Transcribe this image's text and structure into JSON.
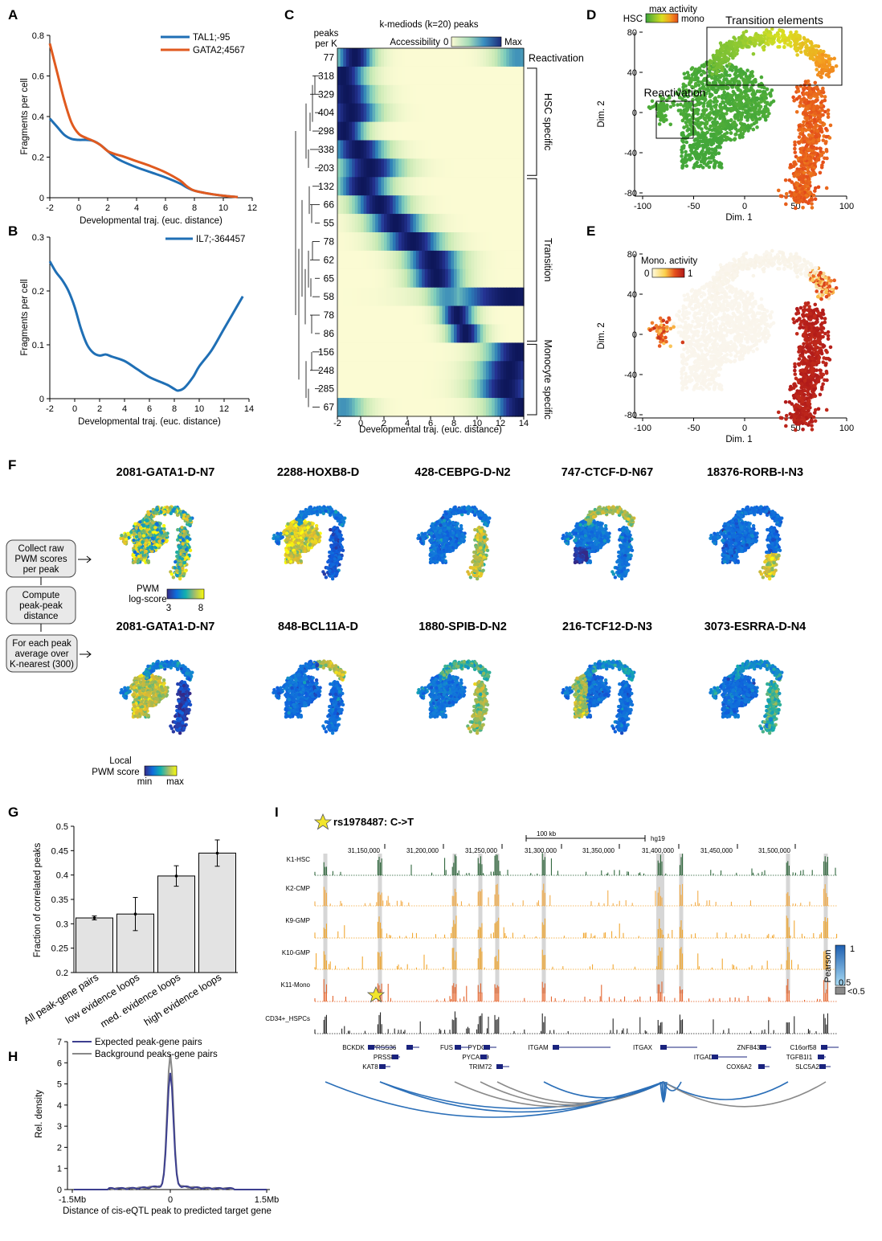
{
  "panels": {
    "A": {
      "letter": "A",
      "chart_data": {
        "type": "line",
        "xlabel": "Developmental traj. (euc. distance)",
        "ylabel": "Fragments per cell",
        "xlim": [
          -2,
          12
        ],
        "ylim": [
          0,
          0.8
        ],
        "xticks": [
          -2,
          0,
          2,
          4,
          6,
          8,
          10,
          12
        ],
        "yticks": [
          0,
          0.2,
          0.4,
          0.6,
          0.8
        ],
        "legend": "top-right",
        "series": [
          {
            "name": "TAL1;-95",
            "color": "#1f6fb5",
            "x": [
              -2,
              -1.5,
              -1,
              -0.5,
              0,
              0.5,
              1,
              1.5,
              2,
              2.5,
              3,
              4,
              5,
              6,
              7,
              7.5,
              8,
              9,
              10,
              11
            ],
            "y": [
              0.39,
              0.35,
              0.31,
              0.29,
              0.285,
              0.285,
              0.28,
              0.26,
              0.23,
              0.2,
              0.18,
              0.15,
              0.125,
              0.1,
              0.07,
              0.05,
              0.035,
              0.02,
              0.01,
              0.003
            ]
          },
          {
            "name": "GATA2;4567",
            "color": "#e05a1f",
            "x": [
              -2,
              -1.5,
              -1,
              -0.5,
              0,
              0.5,
              1,
              1.5,
              2,
              2.5,
              3,
              4,
              5,
              6,
              7,
              7.5,
              8,
              9,
              10,
              11
            ],
            "y": [
              0.76,
              0.62,
              0.48,
              0.37,
              0.315,
              0.295,
              0.28,
              0.26,
              0.23,
              0.215,
              0.205,
              0.18,
              0.155,
              0.125,
              0.085,
              0.055,
              0.035,
              0.02,
              0.01,
              0.003
            ]
          }
        ]
      }
    },
    "B": {
      "letter": "B",
      "chart_data": {
        "type": "line",
        "xlabel": "Developmental traj. (euc. distance)",
        "ylabel": "Fragments per cell",
        "xlim": [
          -2,
          14
        ],
        "ylim": [
          0,
          0.3
        ],
        "xticks": [
          -2,
          0,
          2,
          4,
          6,
          8,
          10,
          12,
          14
        ],
        "yticks": [
          0,
          0.1,
          0.2,
          0.3
        ],
        "legend": "top-right",
        "series": [
          {
            "name": "IL7;-364457",
            "color": "#1f6fb5",
            "x": [
              -2,
              -1.5,
              -1,
              -0.5,
              0,
              0.5,
              1,
              1.5,
              2,
              2.5,
              3,
              4,
              5,
              6,
              7,
              7.5,
              8,
              8.3,
              8.8,
              9.5,
              10,
              11,
              12,
              13.5
            ],
            "y": [
              0.255,
              0.235,
              0.22,
              0.2,
              0.17,
              0.13,
              0.1,
              0.085,
              0.08,
              0.082,
              0.078,
              0.07,
              0.055,
              0.04,
              0.03,
              0.025,
              0.018,
              0.015,
              0.02,
              0.04,
              0.06,
              0.09,
              0.13,
              0.19
            ]
          }
        ]
      }
    },
    "C": {
      "letter": "C",
      "title": "k-mediods (k=20) peaks",
      "peaks_header": [
        "peaks",
        "per K"
      ],
      "scale_label": "Accessibility",
      "scale_min": "0",
      "scale_max": "Max",
      "xlabel": "Developmental traj. (euc. distance)",
      "xticks": [
        -2,
        0,
        2,
        4,
        6,
        8,
        10,
        12,
        14
      ],
      "groups": [
        {
          "label": "Reactivation",
          "rows": [
            0,
            0
          ]
        },
        {
          "label": "HSC specific",
          "rows": [
            1,
            6
          ]
        },
        {
          "label": "Transition",
          "rows": [
            7,
            15
          ]
        },
        {
          "label": "Monocyte specific",
          "rows": [
            16,
            19
          ]
        }
      ],
      "chart_data": {
        "type": "heatmap",
        "row_labels": [
          "77",
          "318",
          "329",
          "404",
          "298",
          "338",
          "203",
          "132",
          "66",
          "55",
          "78",
          "62",
          "65",
          "58",
          "78",
          "86",
          "156",
          "248",
          "285",
          "67"
        ],
        "peak_position_traj": [
          -0.5,
          -1.5,
          -1.2,
          -0.8,
          -1.4,
          -0.2,
          0.8,
          0.2,
          1.6,
          3.0,
          4.5,
          6.2,
          6.5,
          13.0,
          8.3,
          9.0,
          13.5,
          12.8,
          12.5,
          13.8
        ],
        "width": [
          1.8,
          2.2,
          2.5,
          2.6,
          2.0,
          2.6,
          3.0,
          2.5,
          2.5,
          2.6,
          2.8,
          2.6,
          2.4,
          6.0,
          1.6,
          1.6,
          3.0,
          3.0,
          3.0,
          3.0
        ],
        "secondary_peak_traj": [
          13.5,
          null,
          null,
          null,
          null,
          null,
          null,
          null,
          null,
          null,
          null,
          null,
          null,
          7.5,
          null,
          null,
          null,
          null,
          null,
          -1.5
        ],
        "xlim": [
          -2,
          14
        ]
      }
    },
    "D": {
      "letter": "D",
      "scale_title": "max activity",
      "scale_left": "HSC",
      "scale_right": "mono",
      "box1_label": "Transition elements",
      "box2_label": "Reactivation",
      "xlabel": "Dim. 1",
      "ylabel": "Dim. 2",
      "xticks": [
        -100,
        -50,
        0,
        50,
        100
      ],
      "yticks": [
        -80,
        -40,
        0,
        40,
        80
      ]
    },
    "E": {
      "letter": "E",
      "scale_title": "Mono. activity",
      "scale_min": "0",
      "scale_max": "1",
      "xlabel": "Dim. 1",
      "ylabel": "Dim. 2",
      "xticks": [
        -100,
        -50,
        0,
        50,
        100
      ],
      "yticks": [
        -80,
        -40,
        0,
        40,
        80
      ]
    },
    "F": {
      "letter": "F",
      "steps": [
        [
          "Collect raw",
          "PWM scores",
          "per peak"
        ],
        [
          "Compute",
          "peak-peak",
          "distance"
        ],
        [
          "For each peak",
          "average over",
          "K-nearest (300)"
        ]
      ],
      "pwm_scale_title": [
        "PWM",
        "log-score"
      ],
      "pwm_min": "3",
      "pwm_max": "8",
      "local_scale_title": [
        "Local",
        "PWM score"
      ],
      "local_min": "min",
      "local_max": "max",
      "row1_titles": [
        "2081-GATA1-D-N7",
        "2288-HOXB8-D",
        "428-CEBPG-D-N2",
        "747-CTCF-D-N67",
        "18376-RORB-I-N3"
      ],
      "row2_titles": [
        "2081-GATA1-D-N7",
        "848-BCL11A-D",
        "1880-SPIB-D-N2",
        "216-TCF12-D-N3",
        "3073-ESRRA-D-N4"
      ]
    },
    "G": {
      "letter": "G",
      "chart_data": {
        "type": "bar",
        "categories": [
          "All peak-gene pairs",
          "low evidence loops",
          "med. evidence loops",
          "high evidence loops"
        ],
        "values": [
          0.312,
          0.32,
          0.398,
          0.445
        ],
        "errors": [
          0.004,
          0.034,
          0.021,
          0.027
        ],
        "ylabel": "Fraction of correlated peaks",
        "ylim": [
          0.2,
          0.5
        ],
        "yticks": [
          0.2,
          0.25,
          0.3,
          0.35,
          0.4,
          0.45,
          0.5
        ]
      }
    },
    "H": {
      "letter": "H",
      "chart_data": {
        "type": "line",
        "xlabel": "Distance of cis-eQTL peak to predicted target gene",
        "ylabel": "Rel. density",
        "xticklabels": [
          "-1.5Mb",
          "0",
          "1.5Mb"
        ],
        "ylim": [
          0,
          7
        ],
        "yticks": [
          0,
          1,
          2,
          3,
          4,
          5,
          6,
          7
        ],
        "legend": "top-right",
        "series": [
          {
            "name": "Expected peak-gene pairs",
            "color": "#3d3f8f",
            "peak": 5.4
          },
          {
            "name": "Background peaks-gene pairs",
            "color": "#888888",
            "peak": 6.3
          }
        ]
      }
    },
    "I": {
      "letter": "I",
      "snp_label": "rs1978487: C->T",
      "scale_bar_label": "100 kb",
      "genome_label": "hg19",
      "coords": [
        "31,150,000",
        "31,200,000",
        "31,250,000",
        "31,300,000",
        "31,350,000",
        "31,400,000",
        "31,450,000",
        "31,500,000"
      ],
      "tracks": [
        {
          "name": "K1-HSC",
          "color": "#1e5a2c"
        },
        {
          "name": "K2-CMP",
          "color": "#f2a63a"
        },
        {
          "name": "K9-GMP",
          "color": "#f0a020"
        },
        {
          "name": "K10-GMP",
          "color": "#f0a020"
        },
        {
          "name": "K11-Mono",
          "color": "#e2581c"
        },
        {
          "name": "CD34+_HSPCs",
          "color": "#111111"
        }
      ],
      "genes_row1": [
        "BCKDK",
        "PRSS36",
        "FUS",
        "PYDC1",
        "ITGAM",
        "ITGAX",
        "ZNF843",
        "C16orf58"
      ],
      "genes_row2": [
        "PRSS8",
        "PYCARD",
        "ITGAD",
        "TGFB1I1"
      ],
      "genes_row3": [
        "KAT8",
        "TRIM72",
        "COX6A2",
        "SLC5A2"
      ],
      "pearson_title": "Pearson",
      "pearson_max": "1",
      "pearson_mid": "0.5",
      "pearson_low": "<0.5",
      "colors": {
        "loop_high": "#2b6fb8",
        "loop_low": "#8a8a8a",
        "highlight": "#d6d6d6",
        "star": "#f2e52a"
      }
    }
  }
}
